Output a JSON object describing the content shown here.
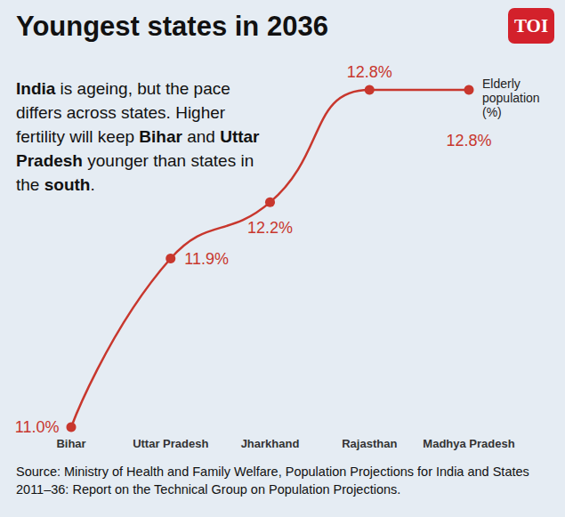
{
  "logo": "TOI",
  "chart_data": {
    "type": "line",
    "title": "Youngest states in 2036",
    "subtitle": "India is ageing, but the pace differs across states. Higher fertility will keep Bihar and Uttar Pradesh younger than states in the south.",
    "subtitle_emphasis": [
      "India",
      "Bihar",
      "Uttar Pradesh",
      "south"
    ],
    "annotation": "Elderly population (%)",
    "source": "Source: Ministry of Health and Family Welfare, Population Projections for India and States 2011–36: Report on the Technical Group on Population Projections.",
    "categories": [
      "Bihar",
      "Uttar Pradesh",
      "Jharkhand",
      "Rajasthan",
      "Madhya Pradesh"
    ],
    "values": [
      11.0,
      11.9,
      12.2,
      12.8,
      12.8
    ],
    "value_labels": [
      "11.0%",
      "11.9%",
      "12.2%",
      "12.8%",
      "12.8%"
    ],
    "color": "#c8372d",
    "marker": "circle",
    "line_style": "solid",
    "data_labels": true,
    "tick_labels": "x",
    "grid": false
  }
}
